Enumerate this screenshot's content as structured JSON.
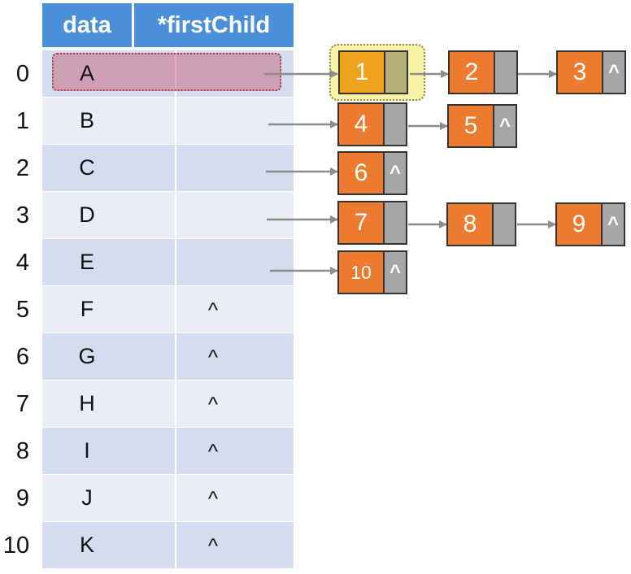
{
  "header": {
    "data_label": "data",
    "first_child_label": "*firstChild"
  },
  "table": {
    "rows": [
      {
        "index": "0",
        "data": "A",
        "first_child": ""
      },
      {
        "index": "1",
        "data": "B",
        "first_child": ""
      },
      {
        "index": "2",
        "data": "C",
        "first_child": ""
      },
      {
        "index": "3",
        "data": "D",
        "first_child": ""
      },
      {
        "index": "4",
        "data": "E",
        "first_child": ""
      },
      {
        "index": "5",
        "data": "F",
        "first_child": "^"
      },
      {
        "index": "6",
        "data": "G",
        "first_child": "^"
      },
      {
        "index": "7",
        "data": "H",
        "first_child": "^"
      },
      {
        "index": "8",
        "data": "I",
        "first_child": "^"
      },
      {
        "index": "9",
        "data": "J",
        "first_child": "^"
      },
      {
        "index": "10",
        "data": "K",
        "first_child": "^"
      }
    ]
  },
  "child_lists": [
    {
      "parent_row": "0",
      "nodes": [
        {
          "value": "1",
          "next": ""
        },
        {
          "value": "2",
          "next": ""
        },
        {
          "value": "3",
          "next": "^"
        }
      ]
    },
    {
      "parent_row": "1",
      "nodes": [
        {
          "value": "4",
          "next": ""
        },
        {
          "value": "5",
          "next": "^"
        }
      ]
    },
    {
      "parent_row": "2",
      "nodes": [
        {
          "value": "6",
          "next": "^"
        }
      ]
    },
    {
      "parent_row": "3",
      "nodes": [
        {
          "value": "7",
          "next": ""
        },
        {
          "value": "8",
          "next": ""
        },
        {
          "value": "9",
          "next": "^"
        }
      ]
    },
    {
      "parent_row": "4",
      "nodes": [
        {
          "value": "10",
          "next": "^"
        }
      ]
    }
  ],
  "colors": {
    "header": "#4a8fd8",
    "row_dark": "#d3ddef",
    "row_light": "#e9edf6",
    "node_data": "#ec7b30",
    "node_next": "#a6a6a6",
    "highlight_node": "#f1a21c",
    "highlight_row": "#c86e82",
    "arrow": "#8c8c8c"
  }
}
